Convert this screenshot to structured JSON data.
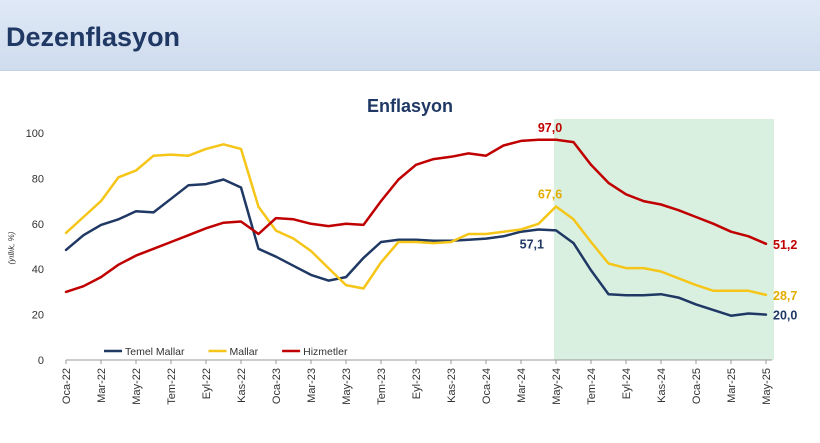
{
  "page": {
    "title": "Dezenflasyon"
  },
  "chart_data": {
    "type": "line",
    "title": "Enflasyon",
    "xlabel": "",
    "ylabel": "(yıllık, %)",
    "ylim": [
      0,
      100
    ],
    "yticks": [
      0,
      20,
      40,
      60,
      80,
      100
    ],
    "xtick_labels": [
      "Oca-22",
      "Mar-22",
      "May-22",
      "Tem-22",
      "Eyl-22",
      "Kas-22",
      "Oca-23",
      "Mar-23",
      "May-23",
      "Tem-23",
      "Eyl-23",
      "Kas-23",
      "Oca-24",
      "Mar-24",
      "May-24",
      "Tem-24",
      "Eyl-24",
      "Kas-24",
      "Oca-25",
      "Mar-25",
      "May-25"
    ],
    "x": [
      "Oca-22",
      "Şub-22",
      "Mar-22",
      "Nis-22",
      "May-22",
      "Haz-22",
      "Tem-22",
      "Ağu-22",
      "Eyl-22",
      "Eki-22",
      "Kas-22",
      "Ara-22",
      "Oca-23",
      "Şub-23",
      "Mar-23",
      "Nis-23",
      "May-23",
      "Haz-23",
      "Tem-23",
      "Ağu-23",
      "Eyl-23",
      "Eki-23",
      "Kas-23",
      "Ara-23",
      "Oca-24",
      "Şub-24",
      "Mar-24",
      "Nis-24",
      "May-24",
      "Haz-24",
      "Tem-24",
      "Ağu-24",
      "Eyl-24",
      "Eki-24",
      "Kas-24",
      "Ara-24",
      "Oca-25",
      "Şub-25",
      "Mar-25",
      "Nis-25",
      "May-25"
    ],
    "highlight_range": [
      "May-24",
      "May-25"
    ],
    "highlight_color": "#d9f0e1",
    "grid": false,
    "legend_position": "bottom-left",
    "series": [
      {
        "name": "Temel Mallar",
        "color": "#1f3864",
        "values": [
          48.5,
          55,
          59.5,
          62,
          65.5,
          65,
          71,
          77,
          77.5,
          79.5,
          76,
          49,
          45.5,
          41.5,
          37.5,
          35,
          36.5,
          45,
          52,
          53,
          53,
          52.5,
          52.5,
          53,
          53.5,
          54.5,
          56.5,
          57.5,
          57.1,
          51.5,
          39.5,
          29,
          28.5,
          28.5,
          29,
          27.5,
          24.5,
          22,
          19.5,
          20.5,
          20.0
        ],
        "labels": [
          {
            "index": 28,
            "text": "57,1"
          },
          {
            "index": 40,
            "text": "20,0"
          }
        ]
      },
      {
        "name": "Mallar",
        "color": "#f5c518",
        "values": [
          56,
          63,
          70,
          80.5,
          83.5,
          90,
          90.5,
          90,
          93,
          95,
          93,
          67.5,
          57,
          53.5,
          48,
          40.5,
          33,
          31.5,
          43,
          52,
          52,
          51.5,
          52,
          55.5,
          55.5,
          56.5,
          57.5,
          60,
          67.6,
          62,
          52,
          42.5,
          40.5,
          40.5,
          39,
          36,
          33,
          30.5,
          30.5,
          30.5,
          28.7
        ],
        "labels": [
          {
            "index": 28,
            "text": "67,6"
          },
          {
            "index": 40,
            "text": "28,7"
          }
        ]
      },
      {
        "name": "Hizmetler",
        "color": "#c00000",
        "values": [
          30,
          32.5,
          36.5,
          42,
          46,
          49,
          52,
          55,
          58,
          60.5,
          61,
          55.5,
          62.5,
          62,
          60,
          59,
          60,
          59.5,
          70,
          79.5,
          86,
          88.5,
          89.5,
          91,
          90,
          94.5,
          96.5,
          97,
          97.0,
          96,
          86,
          78,
          73,
          70,
          68.5,
          66,
          63,
          60,
          56.5,
          54.5,
          51.2
        ],
        "labels": [
          {
            "index": 28,
            "text": "97,0"
          },
          {
            "index": 40,
            "text": "51,2"
          }
        ]
      }
    ]
  }
}
